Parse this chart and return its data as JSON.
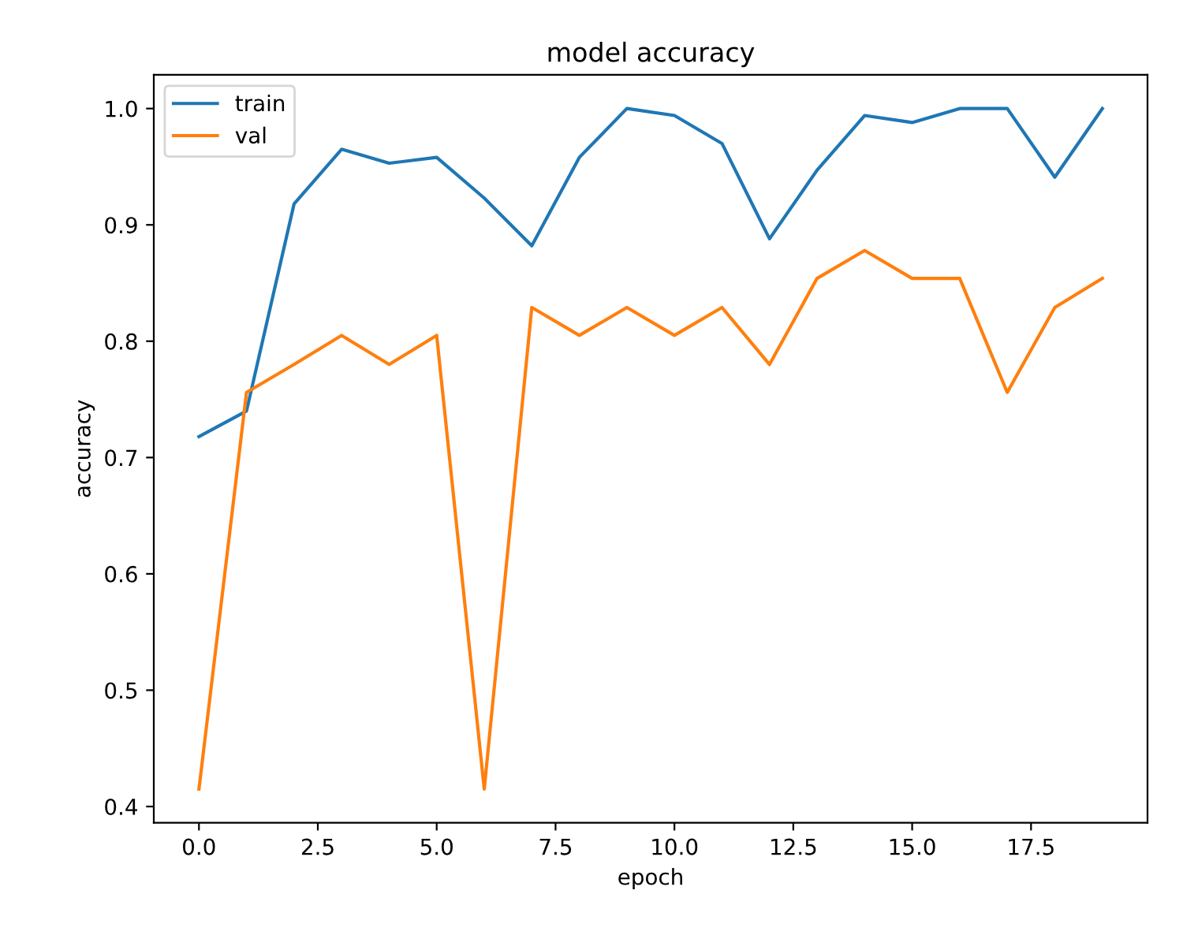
{
  "chart_data": {
    "type": "line",
    "title": "model accuracy",
    "xlabel": "epoch",
    "ylabel": "accuracy",
    "x": [
      0,
      1,
      2,
      3,
      4,
      5,
      6,
      7,
      8,
      9,
      10,
      11,
      12,
      13,
      14,
      15,
      16,
      17,
      18,
      19
    ],
    "series": [
      {
        "name": "train",
        "color": "#1f77b4",
        "values": [
          0.718,
          0.74,
          0.918,
          0.965,
          0.953,
          0.958,
          0.923,
          0.882,
          0.958,
          1.0,
          0.994,
          0.97,
          0.888,
          0.947,
          0.994,
          0.988,
          1.0,
          1.0,
          0.941,
          1.0
        ]
      },
      {
        "name": "val",
        "color": "#ff7f0e",
        "values": [
          0.415,
          0.756,
          0.78,
          0.805,
          0.78,
          0.805,
          0.415,
          0.829,
          0.805,
          0.829,
          0.805,
          0.829,
          0.78,
          0.854,
          0.878,
          0.854,
          0.854,
          0.756,
          0.829,
          0.854
        ]
      }
    ],
    "xlim": [
      -0.95,
      19.95
    ],
    "ylim": [
      0.386,
      1.029
    ],
    "xticks": [
      {
        "value": 0,
        "label": "0.0"
      },
      {
        "value": 2.5,
        "label": "2.5"
      },
      {
        "value": 5,
        "label": "5.0"
      },
      {
        "value": 7.5,
        "label": "7.5"
      },
      {
        "value": 10,
        "label": "10.0"
      },
      {
        "value": 12.5,
        "label": "12.5"
      },
      {
        "value": 15,
        "label": "15.0"
      },
      {
        "value": 17.5,
        "label": "17.5"
      }
    ],
    "yticks": [
      0.4,
      0.5,
      0.6,
      0.7,
      0.8,
      0.9,
      {
        "value": 1.0,
        "label": "1.0"
      }
    ],
    "legend": "top left",
    "grid": false,
    "marker": "none",
    "line_style": "solid"
  }
}
